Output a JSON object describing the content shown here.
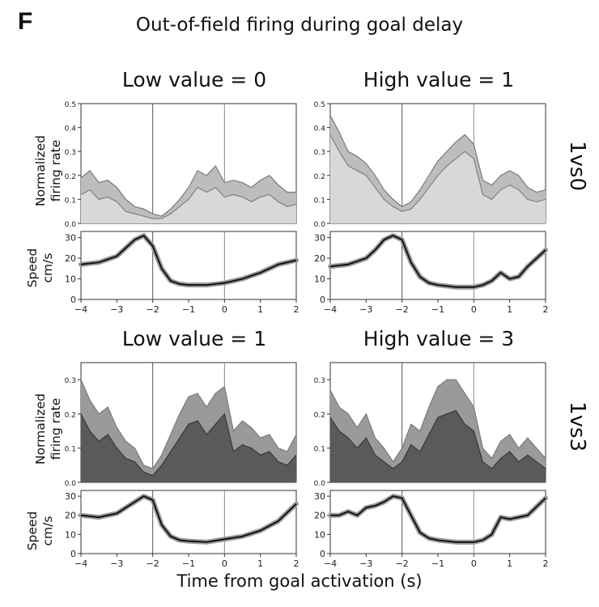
{
  "panel_letter": "F",
  "figure_title": "Out-of-field firing during goal delay",
  "xlabel": "Time from goal activation (s)",
  "row_labels": [
    "1vs0",
    "1vs3"
  ],
  "column_titles": [
    "Low value = 0",
    "High value = 1",
    "Low value = 1",
    "High value = 3"
  ],
  "firing_ylabel": "Normalized firing rate",
  "speed_ylabel": "Speed cm/s",
  "colors": {
    "light_fill": "#d8d8d8",
    "light_band": "#bdbdbd",
    "dark_fill": "#5a5a5a",
    "dark_band": "#9a9a9a",
    "line": "#7a7a7a",
    "speed": "#111111"
  },
  "chart_data": [
    {
      "type": "area",
      "row": "1vs0",
      "title": "Low value = 0",
      "ylabel": "Normalized firing rate",
      "x": [
        -4,
        -3.75,
        -3.5,
        -3.25,
        -3,
        -2.75,
        -2.5,
        -2.25,
        -2,
        -1.75,
        -1.5,
        -1.25,
        -1,
        -0.75,
        -0.5,
        -0.25,
        0,
        0.25,
        0.5,
        0.75,
        1,
        1.25,
        1.5,
        1.75,
        2
      ],
      "series": [
        {
          "name": "upper",
          "values": [
            0.19,
            0.22,
            0.17,
            0.18,
            0.15,
            0.1,
            0.07,
            0.06,
            0.04,
            0.03,
            0.06,
            0.1,
            0.15,
            0.22,
            0.2,
            0.24,
            0.17,
            0.18,
            0.17,
            0.15,
            0.18,
            0.2,
            0.16,
            0.13,
            0.13
          ]
        },
        {
          "name": "lower",
          "values": [
            0.12,
            0.14,
            0.1,
            0.11,
            0.09,
            0.05,
            0.04,
            0.03,
            0.02,
            0.02,
            0.04,
            0.07,
            0.1,
            0.15,
            0.13,
            0.15,
            0.11,
            0.12,
            0.11,
            0.09,
            0.11,
            0.12,
            0.09,
            0.07,
            0.08
          ]
        }
      ],
      "xlim": [
        -4,
        2
      ],
      "ylim": [
        0,
        0.5
      ],
      "yticks": [
        0.0,
        0.1,
        0.2,
        0.3,
        0.4,
        0.5
      ],
      "style": "light"
    },
    {
      "type": "area",
      "row": "1vs0",
      "title": "High value = 1",
      "ylabel": "Normalized firing rate",
      "x": [
        -4,
        -3.75,
        -3.5,
        -3.25,
        -3,
        -2.75,
        -2.5,
        -2.25,
        -2,
        -1.75,
        -1.5,
        -1.25,
        -1,
        -0.75,
        -0.5,
        -0.25,
        0,
        0.25,
        0.5,
        0.75,
        1,
        1.25,
        1.5,
        1.75,
        2
      ],
      "series": [
        {
          "name": "upper",
          "values": [
            0.45,
            0.38,
            0.3,
            0.28,
            0.25,
            0.2,
            0.14,
            0.1,
            0.07,
            0.09,
            0.14,
            0.2,
            0.26,
            0.3,
            0.34,
            0.37,
            0.33,
            0.18,
            0.16,
            0.2,
            0.22,
            0.2,
            0.15,
            0.13,
            0.14
          ]
        },
        {
          "name": "lower",
          "values": [
            0.37,
            0.3,
            0.24,
            0.22,
            0.2,
            0.15,
            0.1,
            0.07,
            0.05,
            0.06,
            0.1,
            0.15,
            0.2,
            0.24,
            0.27,
            0.3,
            0.27,
            0.12,
            0.1,
            0.14,
            0.16,
            0.14,
            0.1,
            0.09,
            0.1
          ]
        }
      ],
      "xlim": [
        -4,
        2
      ],
      "ylim": [
        0,
        0.5
      ],
      "yticks": [
        0.0,
        0.1,
        0.2,
        0.3,
        0.4,
        0.5
      ],
      "style": "light"
    },
    {
      "type": "line",
      "row": "1vs0",
      "ylabel": "Speed cm/s",
      "x": [
        -4,
        -3.5,
        -3,
        -2.75,
        -2.5,
        -2.25,
        -2,
        -1.75,
        -1.5,
        -1.25,
        -1,
        -0.5,
        0,
        0.5,
        1,
        1.5,
        2
      ],
      "values": [
        17,
        18,
        21,
        25,
        29,
        31,
        26,
        15,
        9,
        7.5,
        7,
        7,
        8,
        10,
        13,
        17,
        19
      ],
      "xlim": [
        -4,
        2
      ],
      "ylim": [
        0,
        33
      ],
      "yticks": [
        0,
        10,
        20,
        30
      ],
      "xticks": [
        -4,
        -3,
        -2,
        -1,
        0,
        1,
        2
      ]
    },
    {
      "type": "line",
      "row": "1vs0",
      "ylabel": "Speed cm/s",
      "x": [
        -4,
        -3.5,
        -3,
        -2.75,
        -2.5,
        -2.25,
        -2,
        -1.75,
        -1.5,
        -1.25,
        -1,
        -0.5,
        0,
        0.25,
        0.5,
        0.75,
        1,
        1.25,
        1.5,
        2
      ],
      "values": [
        16,
        17,
        20,
        24,
        29,
        31,
        29,
        18,
        11,
        8,
        7,
        6,
        6,
        7,
        9,
        13,
        10,
        11,
        16,
        24
      ],
      "xlim": [
        -4,
        2
      ],
      "ylim": [
        0,
        33
      ],
      "yticks": [
        0,
        10,
        20,
        30
      ],
      "xticks": [
        -4,
        -3,
        -2,
        -1,
        0,
        1,
        2
      ]
    },
    {
      "type": "area",
      "row": "1vs3",
      "title": "Low value = 1",
      "ylabel": "Normalized firing rate",
      "x": [
        -4,
        -3.75,
        -3.5,
        -3.25,
        -3,
        -2.75,
        -2.5,
        -2.25,
        -2,
        -1.75,
        -1.5,
        -1.25,
        -1,
        -0.75,
        -0.5,
        -0.25,
        0,
        0.25,
        0.5,
        0.75,
        1,
        1.25,
        1.5,
        1.75,
        2
      ],
      "series": [
        {
          "name": "upper",
          "values": [
            0.3,
            0.24,
            0.2,
            0.22,
            0.16,
            0.12,
            0.1,
            0.05,
            0.04,
            0.08,
            0.14,
            0.2,
            0.25,
            0.26,
            0.22,
            0.26,
            0.28,
            0.15,
            0.18,
            0.16,
            0.13,
            0.14,
            0.1,
            0.09,
            0.14
          ]
        },
        {
          "name": "lower",
          "values": [
            0.2,
            0.15,
            0.12,
            0.14,
            0.1,
            0.07,
            0.06,
            0.03,
            0.02,
            0.05,
            0.09,
            0.13,
            0.17,
            0.18,
            0.14,
            0.17,
            0.2,
            0.09,
            0.11,
            0.1,
            0.08,
            0.09,
            0.06,
            0.05,
            0.08
          ]
        }
      ],
      "xlim": [
        -4,
        2
      ],
      "ylim": [
        0,
        0.35
      ],
      "yticks": [
        0.0,
        0.1,
        0.2,
        0.3
      ],
      "style": "dark"
    },
    {
      "type": "area",
      "row": "1vs3",
      "title": "High value = 3",
      "ylabel": "Normalized firing rate",
      "x": [
        -4,
        -3.75,
        -3.5,
        -3.25,
        -3,
        -2.75,
        -2.5,
        -2.25,
        -2,
        -1.75,
        -1.5,
        -1.25,
        -1,
        -0.75,
        -0.5,
        -0.25,
        0,
        0.25,
        0.5,
        0.75,
        1,
        1.25,
        1.5,
        1.75,
        2
      ],
      "series": [
        {
          "name": "upper",
          "values": [
            0.27,
            0.22,
            0.2,
            0.16,
            0.2,
            0.13,
            0.1,
            0.06,
            0.1,
            0.17,
            0.15,
            0.22,
            0.28,
            0.3,
            0.3,
            0.26,
            0.22,
            0.1,
            0.07,
            0.12,
            0.14,
            0.1,
            0.13,
            0.1,
            0.07
          ]
        },
        {
          "name": "lower",
          "values": [
            0.19,
            0.15,
            0.13,
            0.1,
            0.13,
            0.08,
            0.06,
            0.04,
            0.06,
            0.11,
            0.09,
            0.14,
            0.19,
            0.2,
            0.21,
            0.17,
            0.15,
            0.06,
            0.04,
            0.07,
            0.09,
            0.06,
            0.08,
            0.06,
            0.04
          ]
        }
      ],
      "xlim": [
        -4,
        2
      ],
      "ylim": [
        0,
        0.35
      ],
      "yticks": [
        0.0,
        0.1,
        0.2,
        0.3
      ],
      "style": "dark"
    },
    {
      "type": "line",
      "row": "1vs3",
      "ylabel": "Speed cm/s",
      "x": [
        -4,
        -3.5,
        -3,
        -2.75,
        -2.5,
        -2.25,
        -2,
        -1.75,
        -1.5,
        -1.25,
        -1,
        -0.5,
        0,
        0.5,
        1,
        1.5,
        2
      ],
      "values": [
        20,
        19,
        21,
        24,
        27,
        30,
        28,
        15,
        9,
        7,
        6.5,
        6,
        7.5,
        9,
        12,
        17,
        26
      ],
      "xlim": [
        -4,
        2
      ],
      "ylim": [
        0,
        33
      ],
      "yticks": [
        0,
        10,
        20,
        30
      ],
      "xticks": [
        -4,
        -3,
        -2,
        -1,
        0,
        1,
        2
      ]
    },
    {
      "type": "line",
      "row": "1vs3",
      "ylabel": "Speed cm/s",
      "x": [
        -4,
        -3.75,
        -3.5,
        -3.25,
        -3,
        -2.75,
        -2.5,
        -2.25,
        -2,
        -1.75,
        -1.5,
        -1.25,
        -1,
        -0.5,
        0,
        0.25,
        0.5,
        0.75,
        1,
        1.5,
        2
      ],
      "values": [
        20,
        20,
        22,
        20,
        24,
        25,
        27,
        30,
        29,
        20,
        11,
        8,
        7,
        6,
        6,
        7,
        10,
        19,
        18,
        20,
        29
      ],
      "xlim": [
        -4,
        2
      ],
      "ylim": [
        0,
        33
      ],
      "yticks": [
        0,
        10,
        20,
        30
      ],
      "xticks": [
        -4,
        -3,
        -2,
        -1,
        0,
        1,
        2
      ]
    }
  ]
}
